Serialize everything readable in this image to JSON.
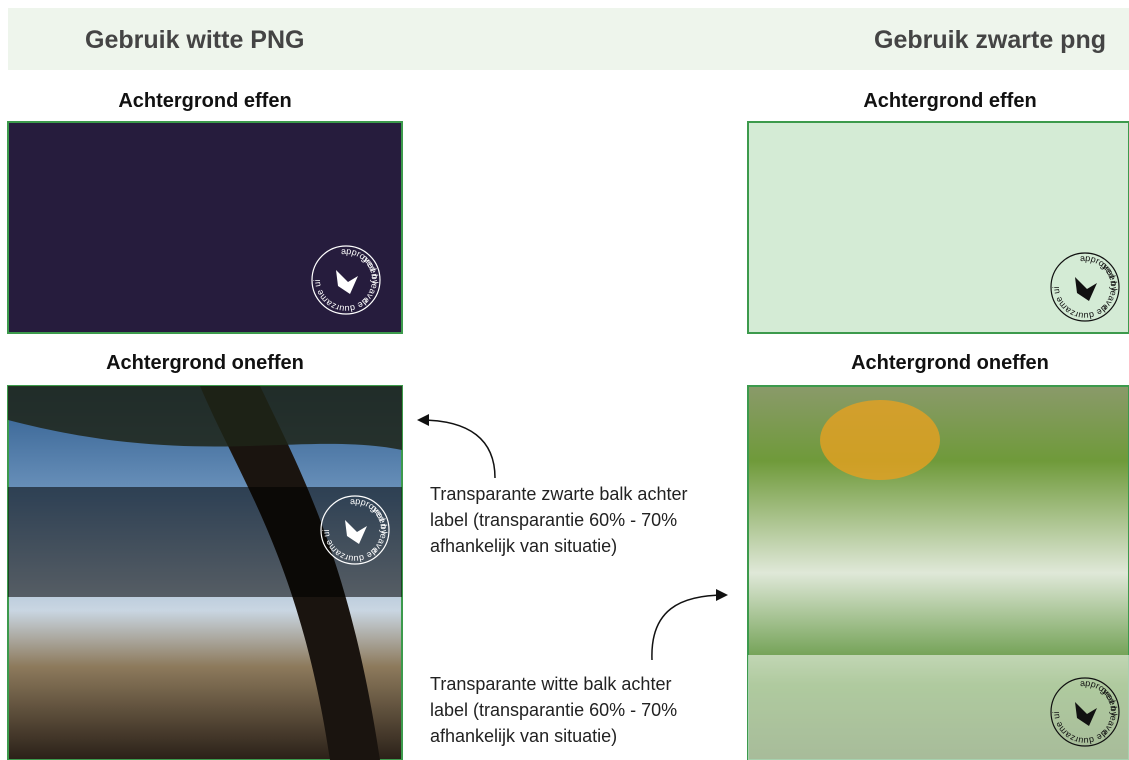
{
  "header": {
    "left_title": "Gebruik witte PNG",
    "right_title": "Gebruik zwarte png"
  },
  "left": {
    "plain_label": "Achtergrond effen",
    "uneven_label": "Achtergrond oneffen"
  },
  "right": {
    "plain_label": "Achtergrond effen",
    "uneven_label": "Achtergrond oneffen"
  },
  "notes": {
    "black_bar": [
      "Transparante zwarte balk achter",
      "label (transparantie 60% - 70%",
      "afhankelijk van situatie)"
    ],
    "white_bar": [
      "Transparante witte balk achter",
      "label (transparantie 60% - 70%",
      "afhankelijk van situatie)"
    ]
  },
  "logo": {
    "top": "approved by",
    "brand": "green leave",
    "bottom": "de duurzame uitvaart"
  }
}
